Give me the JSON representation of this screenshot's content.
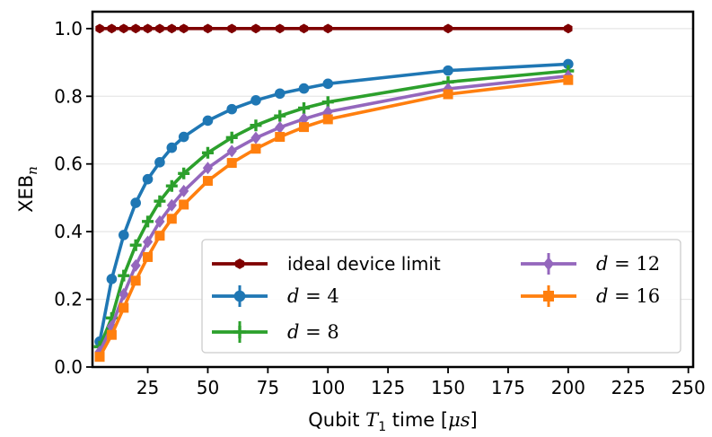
{
  "chart_data": {
    "type": "line",
    "title": "",
    "xlabel": "Qubit T1 time [μs]",
    "xlabel_parts": {
      "pre": "Qubit ",
      "var": "T",
      "sub": "1",
      "mid": " time [",
      "unit": "μs",
      "post": "]"
    },
    "ylabel": "XEBn",
    "ylabel_parts": {
      "base": "XEB",
      "sub": "n"
    },
    "xlim": [
      2,
      252
    ],
    "ylim": [
      0,
      1.05
    ],
    "xticks": [
      25,
      50,
      75,
      100,
      125,
      150,
      175,
      200,
      225,
      250
    ],
    "yticks": [
      0.0,
      0.2,
      0.4,
      0.6,
      0.8,
      1.0
    ],
    "xtick_labels": [
      "25",
      "50",
      "75",
      "100",
      "125",
      "150",
      "175",
      "200",
      "225",
      "250"
    ],
    "ytick_labels": [
      "0.0",
      "0.2",
      "0.4",
      "0.6",
      "0.8",
      "1.0"
    ],
    "grid": {
      "y": true,
      "x": false
    },
    "legend_placement": "lower-right",
    "legend_columns": 2,
    "x": [
      5,
      10,
      15,
      20,
      25,
      30,
      35,
      40,
      50,
      60,
      70,
      80,
      90,
      100,
      150,
      200
    ],
    "series": [
      {
        "name": "ideal device limit",
        "color": "#7f0000",
        "marker": "hexagon",
        "values": [
          1.0,
          1.0,
          1.0,
          1.0,
          1.0,
          1.0,
          1.0,
          1.0,
          1.0,
          1.0,
          1.0,
          1.0,
          1.0,
          1.0,
          1.0,
          1.0
        ]
      },
      {
        "name": "d = 4",
        "label_var": "d",
        "label_value": "4",
        "color": "#1f77b4",
        "marker": "circle",
        "values": [
          0.075,
          0.26,
          0.39,
          0.485,
          0.555,
          0.605,
          0.648,
          0.68,
          0.728,
          0.762,
          0.788,
          0.808,
          0.823,
          0.837,
          0.876,
          0.895
        ]
      },
      {
        "name": "d = 8",
        "label_var": "d",
        "label_value": "8",
        "color": "#2ca02c",
        "marker": "plus",
        "values": [
          0.06,
          0.145,
          0.27,
          0.36,
          0.43,
          0.49,
          0.535,
          0.572,
          0.633,
          0.678,
          0.714,
          0.742,
          0.765,
          0.783,
          0.842,
          0.875
        ]
      },
      {
        "name": "d = 12",
        "label_var": "d",
        "label_value": "12",
        "color": "#9467bd",
        "marker": "diamond",
        "values": [
          0.045,
          0.12,
          0.215,
          0.3,
          0.37,
          0.43,
          0.478,
          0.52,
          0.588,
          0.638,
          0.677,
          0.708,
          0.733,
          0.754,
          0.822,
          0.86
        ]
      },
      {
        "name": "d = 16",
        "label_var": "d",
        "label_value": "16",
        "color": "#ff7f0e",
        "marker": "square",
        "values": [
          0.03,
          0.095,
          0.175,
          0.255,
          0.325,
          0.388,
          0.438,
          0.48,
          0.55,
          0.603,
          0.645,
          0.68,
          0.709,
          0.732,
          0.806,
          0.848
        ]
      }
    ]
  }
}
